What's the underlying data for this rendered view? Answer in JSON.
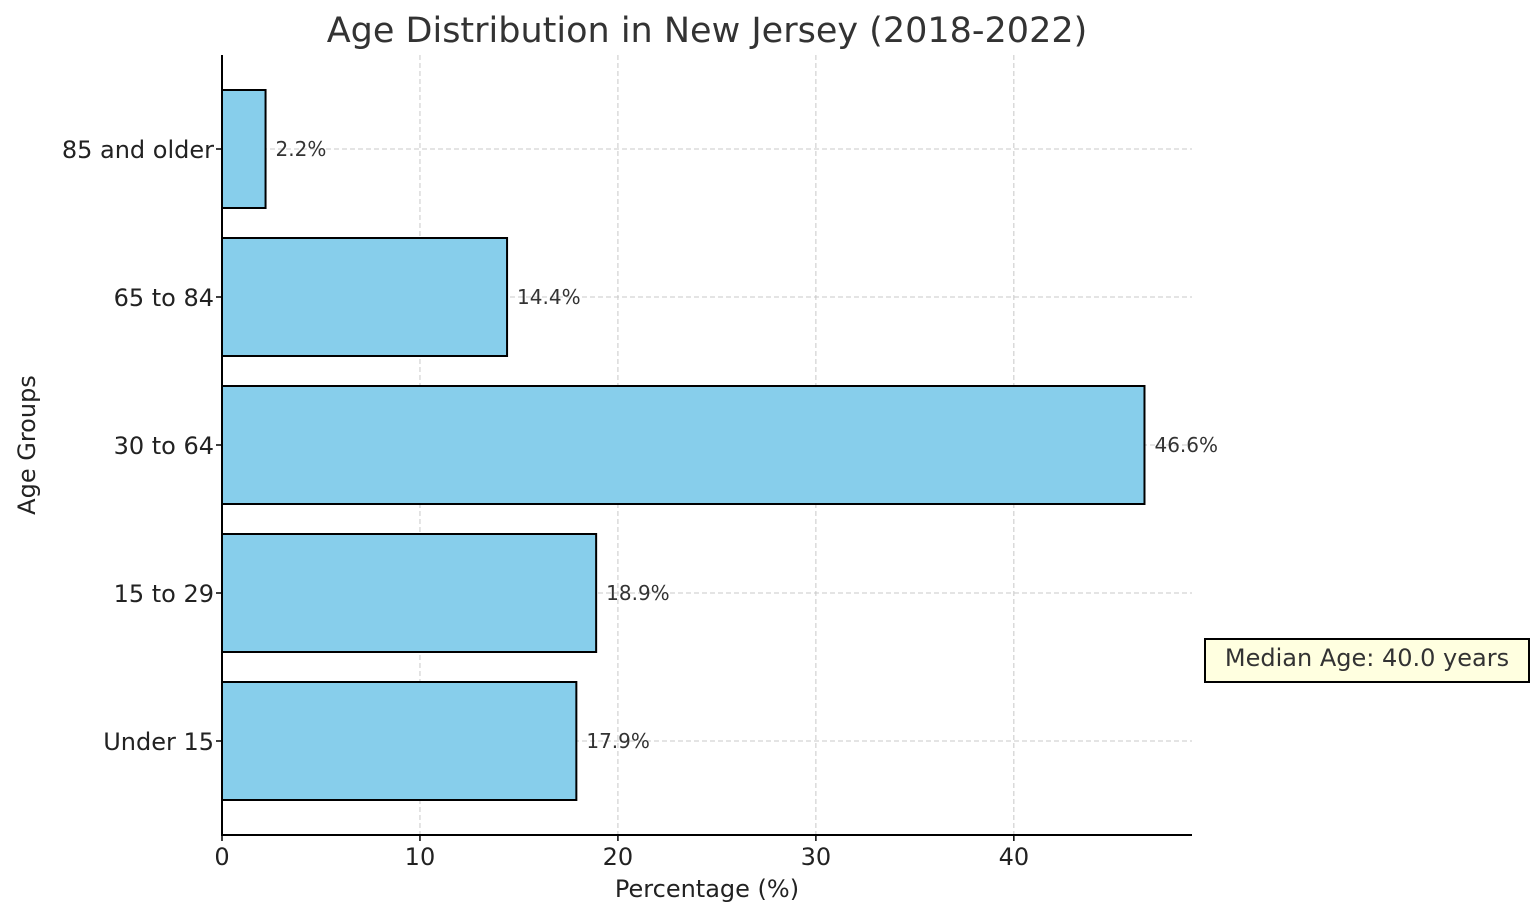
{
  "chart_data": {
    "type": "bar",
    "orientation": "horizontal",
    "title": "Age Distribution in New Jersey (2018-2022)",
    "xlabel": "Percentage (%)",
    "ylabel": "Age Groups",
    "categories": [
      "Under 15",
      "15 to 29",
      "30 to 64",
      "65 to 84",
      "85 and older"
    ],
    "values": [
      17.9,
      18.9,
      46.6,
      14.4,
      2.2
    ],
    "data_labels": [
      "17.9%",
      "18.9%",
      "46.6%",
      "14.4%",
      "2.2%"
    ],
    "xlim": [
      0,
      49
    ],
    "xticks": [
      0,
      10,
      20,
      30,
      40
    ],
    "grid": true,
    "bar_color": "#87ceeb",
    "bar_edge_color": "#000000",
    "annotation": {
      "text": "Median Age: 40.0 years",
      "placement": "right",
      "background": "#ffffe0"
    }
  }
}
